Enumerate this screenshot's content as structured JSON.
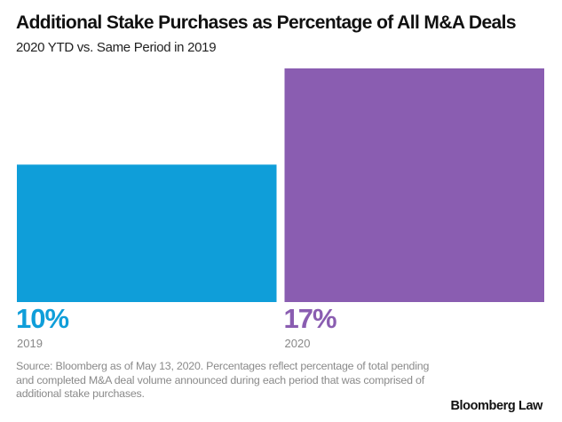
{
  "chart_data": {
    "type": "bar",
    "title": "Additional Stake Purchases as Percentage of All M&A Deals",
    "subtitle": "2020 YTD vs. Same Period in 2019",
    "categories": [
      "2019",
      "2020"
    ],
    "values": [
      10,
      17
    ],
    "value_labels": [
      "10%",
      "17%"
    ],
    "colors": [
      "#0f9ed9",
      "#8a5db1"
    ],
    "xlabel": "",
    "ylabel": "",
    "ylim": [
      0,
      17
    ],
    "grid": false,
    "legend": "none"
  },
  "footer": {
    "source": "Source: Bloomberg as of May 13, 2020. Percentages reflect percentage of total pending and completed M&A deal volume announced during each period that was comprised of additional stake purchases.",
    "brand": "Bloomberg Law"
  }
}
